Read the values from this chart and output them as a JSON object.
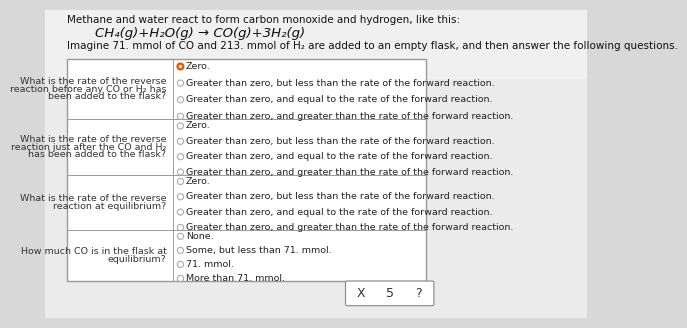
{
  "bg_color": "#d8d8d8",
  "page_bg": "#e8e8e8",
  "title_line1": "Methane and water react to form carbon monoxide and hydrogen, like this:",
  "equation": "CH₄(g)+H₂O(g) → CO(g)+3H₂(g)",
  "intro": "Imagine 71. mmol of CO and 213. mmol of H₂ are added to an empty flask, and then answer the following questions.",
  "table_bg": "#ffffff",
  "table_border": "#999999",
  "rows": [
    {
      "question": "What is the rate of the reverse\nreaction before any CO or H₂ has\nbeen added to the flask?",
      "options": [
        "Zero.",
        "Greater than zero, but less than the rate of the forward reaction.",
        "Greater than zero, and equal to the rate of the forward reaction.",
        "Greater than zero, and greater than the rate of the forward reaction."
      ],
      "selected": 0
    },
    {
      "question": "What is the rate of the reverse\nreaction just after the CO and H₂\nhas been added to the flask?",
      "options": [
        "Zero.",
        "Greater than zero, but less than the rate of the forward reaction.",
        "Greater than zero, and equal to the rate of the forward reaction.",
        "Greater than zero, and greater than the rate of the forward reaction."
      ],
      "selected": null
    },
    {
      "question": "What is the rate of the reverse\nreaction at equilibrium?",
      "options": [
        "Zero.",
        "Greater than zero, but less than the rate of the forward reaction.",
        "Greater than zero, and equal to the rate of the forward reaction.",
        "Greater than zero, and greater than the rate of the forward reaction."
      ],
      "selected": null
    },
    {
      "question": "How much CO is in the flask at\nequilibrium?",
      "options": [
        "None.",
        "Some, but less than 71. mmol.",
        "71. mmol.",
        "More than 71. mmol."
      ],
      "selected": null
    }
  ],
  "selected_color": "#e06010",
  "radio_empty_edge": "#aaaaaa",
  "text_color": "#111111",
  "question_color": "#333333",
  "option_color": "#222222",
  "font_size_title": 7.5,
  "font_size_eq": 9.5,
  "font_size_intro": 7.5,
  "font_size_question": 6.8,
  "font_size_option": 6.8
}
